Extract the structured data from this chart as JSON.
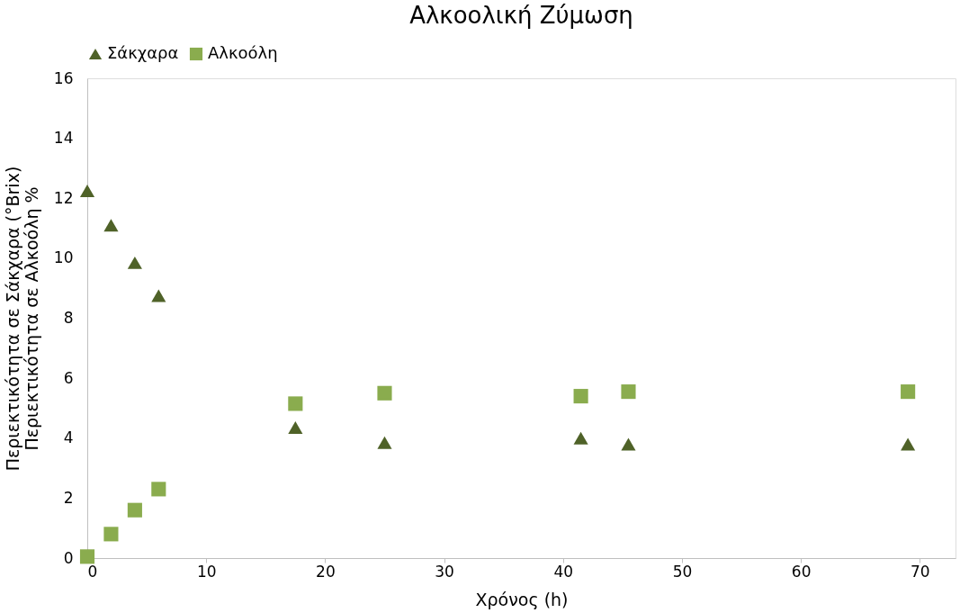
{
  "chart_data": {
    "type": "scatter",
    "title": "Αλκοολική Ζύμωση",
    "xlabel": "Χρόνος (h)",
    "ylabel": "Περιεκτικότητα σε Σάκχαρα (°Brix)\nΠεριεκτικότητα σε Αλκοόλη %",
    "x": [
      0,
      2,
      4,
      6,
      17.5,
      25,
      41.5,
      45.5,
      69
    ],
    "series": [
      {
        "name": "Σάκχαρα",
        "color": "#4f6228",
        "marker": "triangle",
        "values": [
          12.25,
          11.1,
          9.85,
          8.75,
          4.35,
          3.85,
          4.0,
          3.8,
          3.8
        ]
      },
      {
        "name": "Αλκοόλη",
        "color": "#8aac4e",
        "marker": "square",
        "values": [
          0.05,
          0.8,
          1.6,
          2.3,
          5.15,
          5.5,
          5.4,
          5.55,
          5.55
        ]
      }
    ],
    "xlim": [
      0,
      73
    ],
    "xticks": [
      0,
      10,
      20,
      30,
      40,
      50,
      60,
      70
    ],
    "ylim": [
      0,
      16
    ],
    "yticks": [
      0,
      2,
      4,
      6,
      8,
      10,
      12,
      14,
      16
    ],
    "grid": false,
    "legend": "top"
  }
}
